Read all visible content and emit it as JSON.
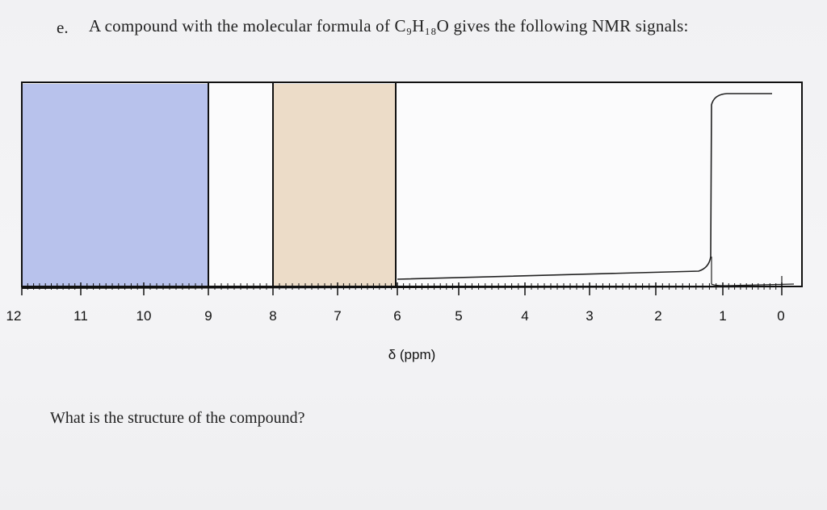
{
  "question": {
    "label": "e.",
    "text": "A compound with the molecular formula of C₉H₁₈O gives the following NMR signals:"
  },
  "spectrum": {
    "x_axis": {
      "tick_labels": [
        "12",
        "11",
        "10",
        "9",
        "8",
        "7",
        "6",
        "5",
        "4",
        "3",
        "2",
        "1",
        "0"
      ],
      "title": "δ (ppm)"
    }
  },
  "follow_up": "What is the structure of the compound?"
}
